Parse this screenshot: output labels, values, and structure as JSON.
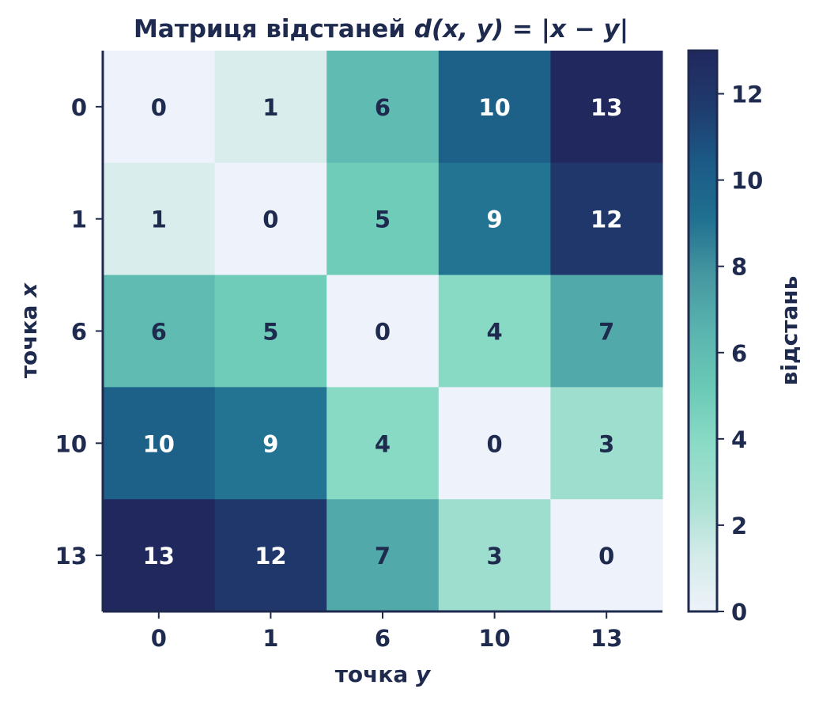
{
  "chart_data": {
    "type": "heatmap",
    "title_prefix": "Матриця відстаней ",
    "title_formula": "d(x, y) = |x − y|",
    "xlabel_prefix": "точка ",
    "xlabel_var": "y",
    "ylabel_prefix": "точка ",
    "ylabel_var": "x",
    "x_categories": [
      "0",
      "1",
      "6",
      "10",
      "13"
    ],
    "y_categories": [
      "0",
      "1",
      "6",
      "10",
      "13"
    ],
    "values": [
      [
        0,
        1,
        6,
        10,
        13
      ],
      [
        1,
        0,
        5,
        9,
        12
      ],
      [
        6,
        5,
        0,
        4,
        7
      ],
      [
        10,
        9,
        4,
        0,
        3
      ],
      [
        13,
        12,
        7,
        3,
        0
      ]
    ],
    "colorbar": {
      "label": "відстань",
      "range": [
        0,
        13
      ],
      "ticks": [
        "0",
        "2",
        "4",
        "6",
        "8",
        "10",
        "12"
      ]
    },
    "colors": {
      "dark_text": "#1f2a4f",
      "light_text": "#ffffff",
      "scale": [
        "#eef2fa",
        "#d3ebe9",
        "#a6e0d1",
        "#8adbc6",
        "#6ac9b6",
        "#5ab4af",
        "#4597a0",
        "#207091",
        "#1b5a86",
        "#1f3b6e",
        "#21285e"
      ]
    }
  }
}
